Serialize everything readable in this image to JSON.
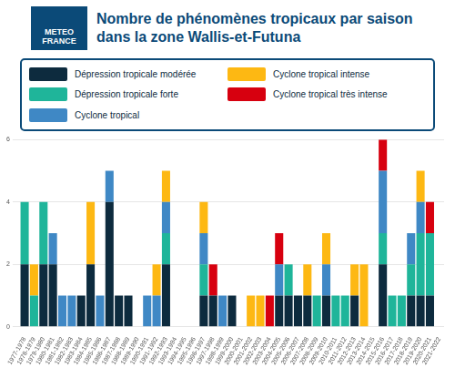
{
  "header": {
    "logo": "METEO FRANCE"
  },
  "chart_data": {
    "type": "bar",
    "title": "Nombre de phénomènes tropicaux par saison dans la zone Wallis-et-Futuna",
    "categories": [
      "1977-1978",
      "1978-1979",
      "1979-1980",
      "1980-1981",
      "1981-1982",
      "1982-1983",
      "1983-1984",
      "1984-1985",
      "1985-1986",
      "1986-1987",
      "1987-1988",
      "1988-1989",
      "1989-1990",
      "1990-1991",
      "1991-1992",
      "1992-1993",
      "1993-1994",
      "1994-1995",
      "1995-1996",
      "1996-1997",
      "1997-1998",
      "1998-1999",
      "1999-2000",
      "2000-2001",
      "2001-2002",
      "2002-2003",
      "2003-2004",
      "2004-2005",
      "2005-2006",
      "2006-2007",
      "2007-2008",
      "2008-2009",
      "2009-2010",
      "2010-2011",
      "2011-2012",
      "2012-2013",
      "2013-2014",
      "2014-2015",
      "2015-2016",
      "2016-2017",
      "2017-2018",
      "2018-2019",
      "2019-2020",
      "2020-2021",
      "2021-2022"
    ],
    "series": [
      {
        "name": "Dépression tropicale modérée",
        "color": "#0d2b3e",
        "values": [
          2,
          0,
          2,
          2,
          0,
          0,
          1,
          2,
          0,
          4,
          1,
          1,
          0,
          0,
          0,
          2,
          0,
          0,
          0,
          1,
          1,
          0,
          1,
          0,
          0,
          0,
          0,
          1,
          1,
          1,
          1,
          0,
          1,
          0,
          0,
          1,
          0,
          0,
          2,
          0,
          0,
          1,
          1,
          1,
          0
        ]
      },
      {
        "name": "Dépression tropicale forte",
        "color": "#1fb59a",
        "values": [
          2,
          1,
          2,
          0,
          0,
          0,
          0,
          0,
          0,
          0,
          0,
          0,
          0,
          0,
          0,
          1,
          0,
          0,
          0,
          1,
          0,
          0,
          0,
          0,
          0,
          0,
          0,
          0,
          1,
          0,
          0,
          1,
          0,
          1,
          1,
          0,
          0,
          0,
          1,
          1,
          1,
          1,
          2,
          2,
          0
        ]
      },
      {
        "name": "Cyclone tropical",
        "color": "#3f88c5",
        "values": [
          0,
          0,
          0,
          1,
          1,
          1,
          0,
          0,
          1,
          1,
          0,
          0,
          0,
          1,
          1,
          1,
          0,
          0,
          0,
          1,
          0,
          1,
          0,
          0,
          0,
          0,
          0,
          1,
          0,
          0,
          0,
          0,
          1,
          0,
          0,
          0,
          0,
          0,
          2,
          0,
          0,
          1,
          1,
          0,
          0
        ]
      },
      {
        "name": "Cyclone tropical intense",
        "color": "#fdb813",
        "values": [
          0,
          1,
          0,
          0,
          0,
          0,
          0,
          2,
          0,
          0,
          0,
          0,
          0,
          0,
          1,
          1,
          0,
          0,
          0,
          1,
          0,
          0,
          0,
          0,
          1,
          1,
          0,
          0,
          0,
          0,
          1,
          0,
          1,
          0,
          0,
          1,
          2,
          0,
          0,
          0,
          0,
          0,
          1,
          0,
          0
        ]
      },
      {
        "name": "Cyclone tropical très intense",
        "color": "#d7000f",
        "values": [
          0,
          0,
          0,
          0,
          0,
          0,
          0,
          0,
          0,
          0,
          0,
          0,
          0,
          0,
          0,
          0,
          0,
          0,
          0,
          0,
          1,
          0,
          0,
          0,
          0,
          0,
          1,
          1,
          0,
          0,
          0,
          0,
          0,
          0,
          0,
          0,
          0,
          0,
          1,
          0,
          0,
          0,
          0,
          1,
          0
        ]
      }
    ],
    "stacked": true,
    "grid": true,
    "legend": "top",
    "ylim": [
      0,
      6
    ],
    "yticks": [
      0,
      2,
      4,
      6
    ]
  }
}
